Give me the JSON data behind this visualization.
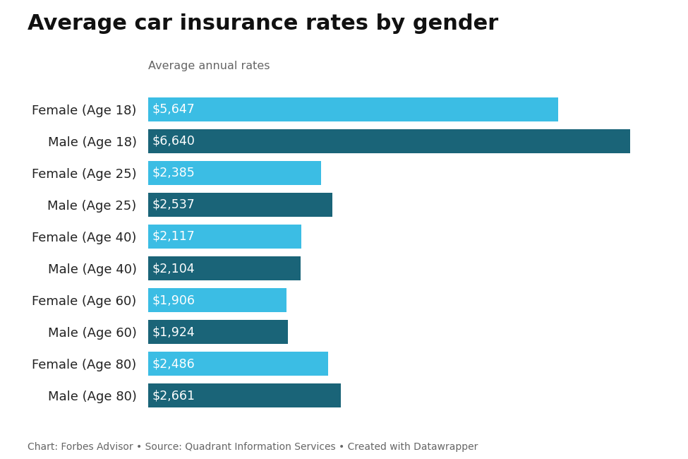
{
  "title": "Average car insurance rates by gender",
  "subtitle": "Average annual rates",
  "footer": "Chart: Forbes Advisor • Source: Quadrant Information Services • Created with Datawrapper",
  "categories": [
    "Female (Age 18)",
    "Male (Age 18)",
    "Female (Age 25)",
    "Male (Age 25)",
    "Female (Age 40)",
    "Male (Age 40)",
    "Female (Age 60)",
    "Male (Age 60)",
    "Female (Age 80)",
    "Male (Age 80)"
  ],
  "values": [
    5647,
    6640,
    2385,
    2537,
    2117,
    2104,
    1906,
    1924,
    2486,
    2661
  ],
  "labels": [
    "$5,647",
    "$6,640",
    "$2,385",
    "$2,537",
    "$2,117",
    "$2,104",
    "$1,906",
    "$1,924",
    "$2,486",
    "$2,661"
  ],
  "colors": [
    "#3bbde4",
    "#1a6478",
    "#3bbde4",
    "#1a6478",
    "#3bbde4",
    "#1a6478",
    "#3bbde4",
    "#1a6478",
    "#3bbde4",
    "#1a6478"
  ],
  "background_color": "#ffffff",
  "title_fontsize": 22,
  "subtitle_fontsize": 11.5,
  "label_fontsize": 13,
  "footer_fontsize": 10,
  "bar_label_fontsize": 12.5,
  "xlim": [
    0,
    7200
  ]
}
